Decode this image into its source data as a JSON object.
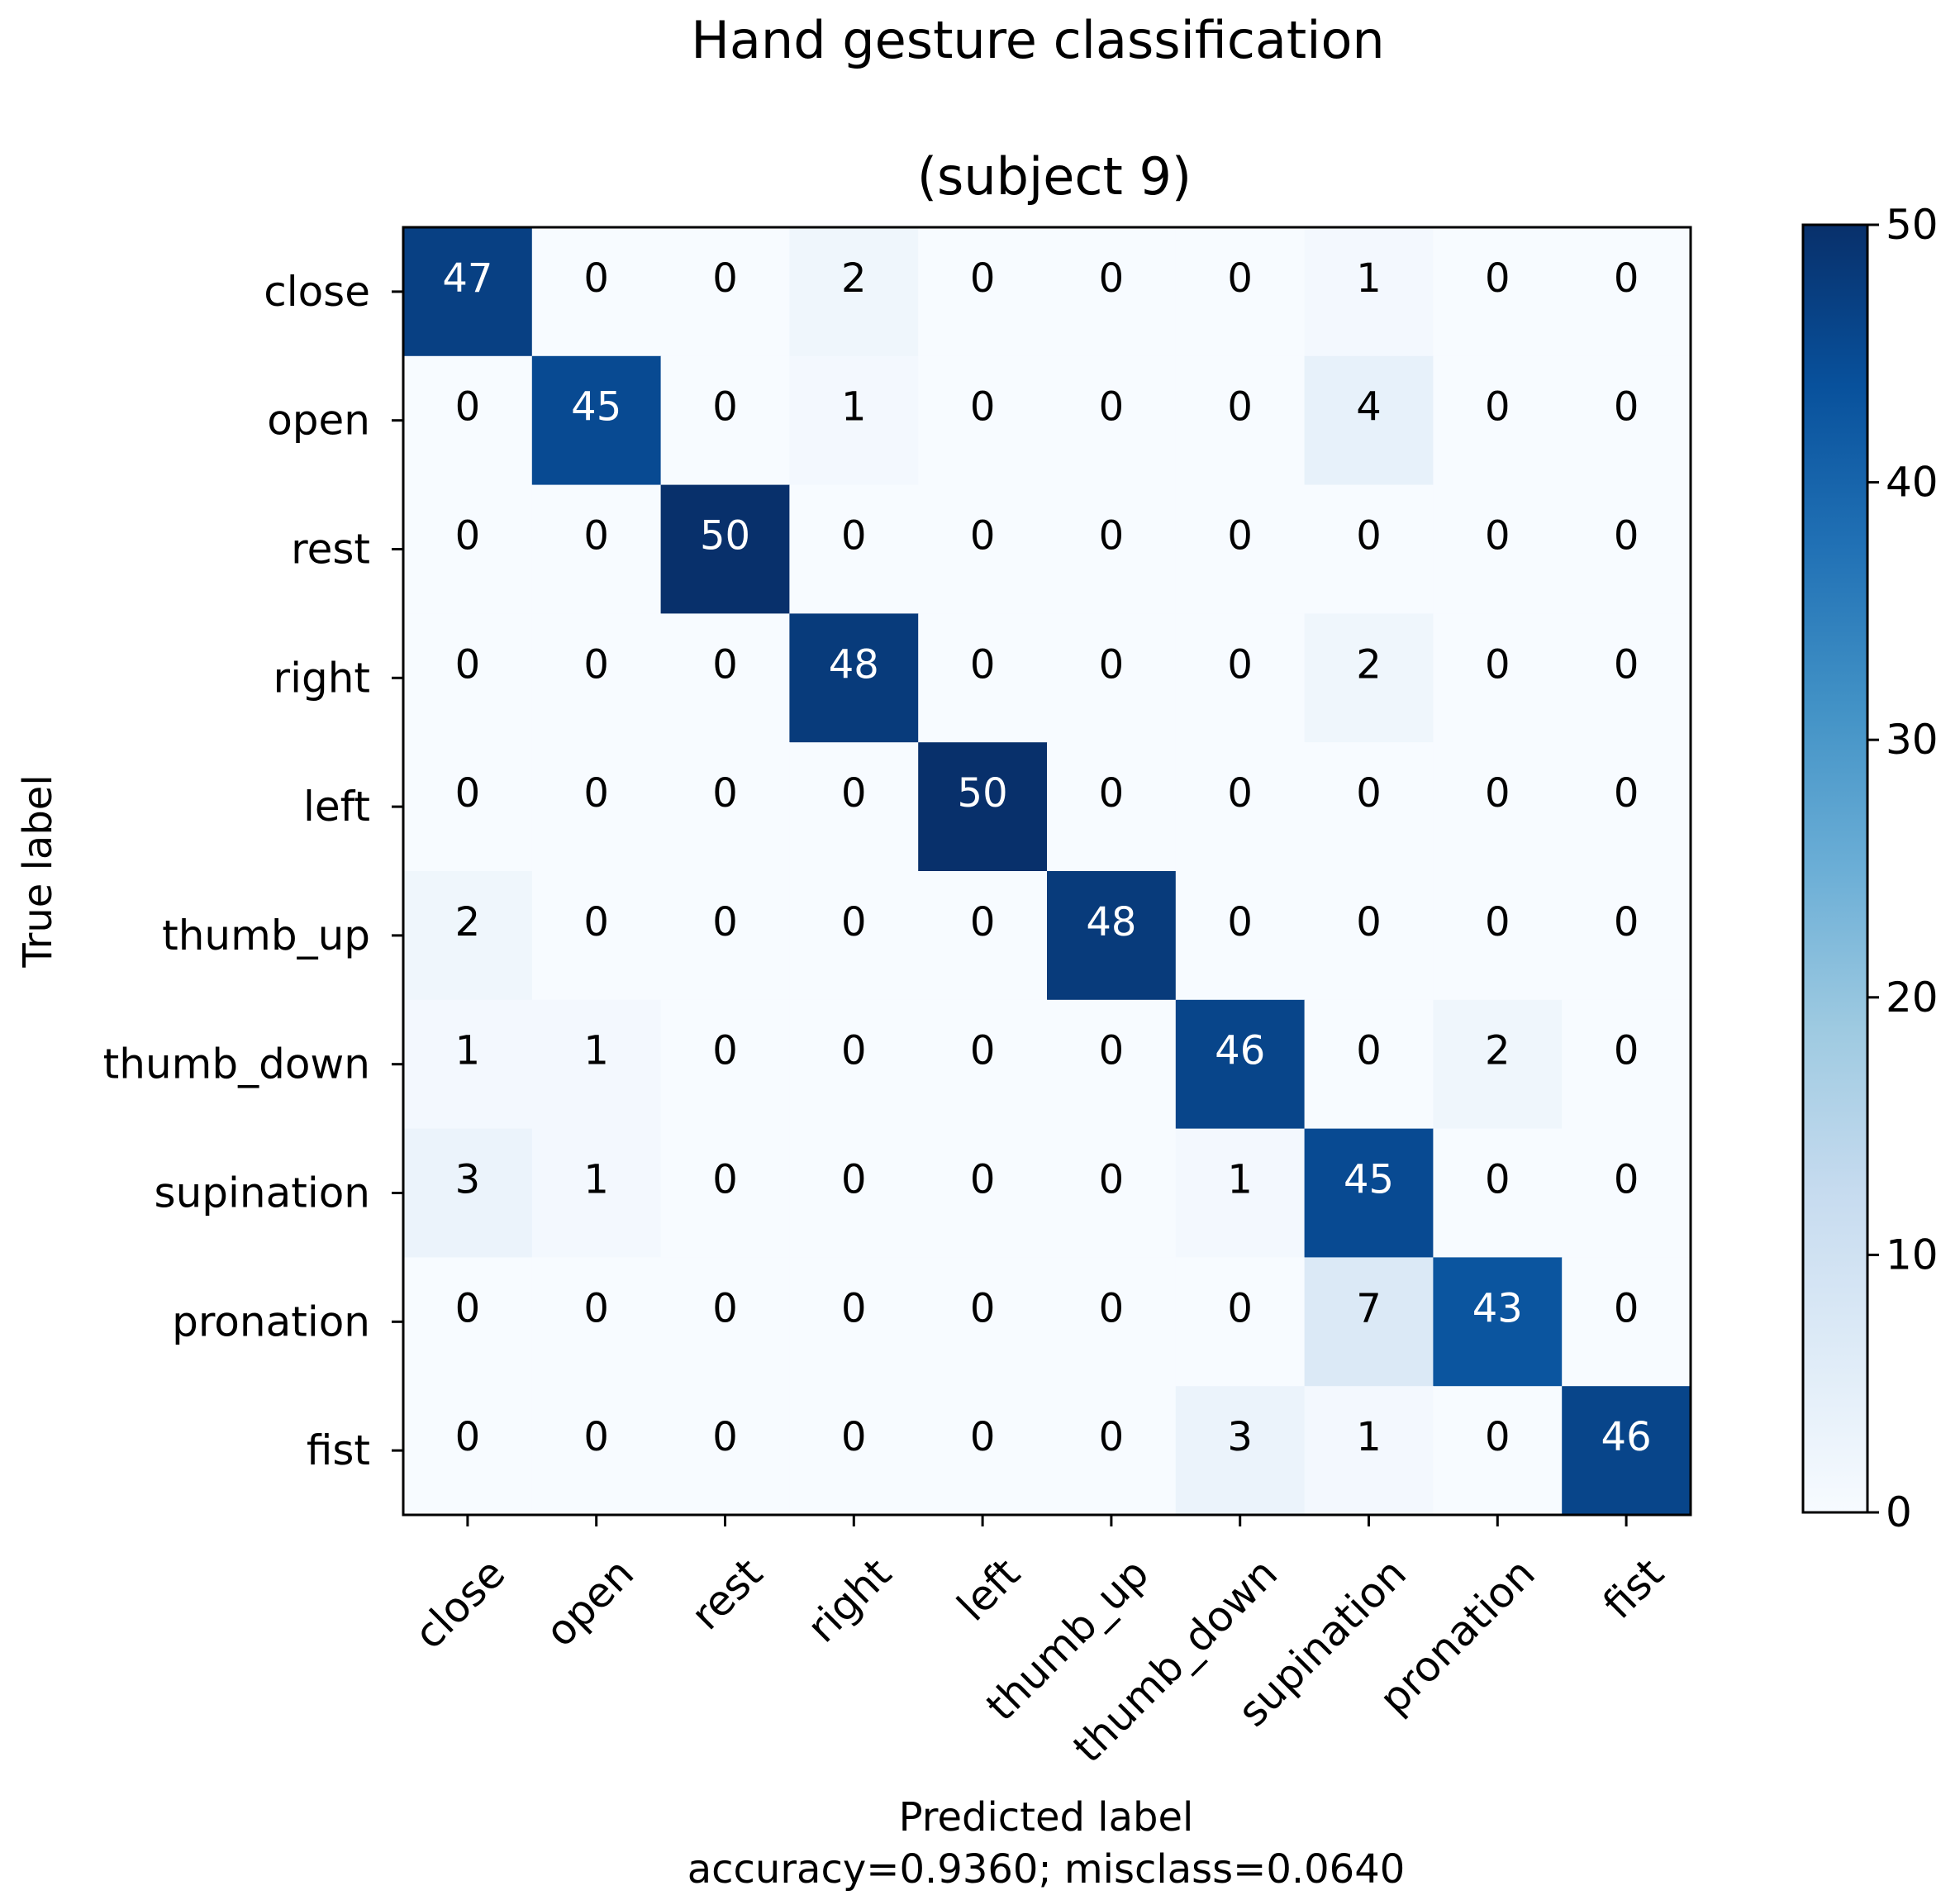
{
  "chart_data": {
    "type": "heatmap",
    "title": "Hand gesture classification",
    "subtitle": "(subject 9)",
    "xlabel": "Predicted label",
    "metrics_line": "accuracy=0.9360; misclass=0.0640",
    "ylabel": "True label",
    "row_labels": [
      "close",
      "open",
      "rest",
      "right",
      "left",
      "thumb_up",
      "thumb_down",
      "supination",
      "pronation",
      "fist"
    ],
    "col_labels": [
      "close",
      "open",
      "rest",
      "right",
      "left",
      "thumb_up",
      "thumb_down",
      "supination",
      "pronation",
      "fist"
    ],
    "matrix": [
      [
        47,
        0,
        0,
        2,
        0,
        0,
        0,
        1,
        0,
        0
      ],
      [
        0,
        45,
        0,
        1,
        0,
        0,
        0,
        4,
        0,
        0
      ],
      [
        0,
        0,
        50,
        0,
        0,
        0,
        0,
        0,
        0,
        0
      ],
      [
        0,
        0,
        0,
        48,
        0,
        0,
        0,
        2,
        0,
        0
      ],
      [
        0,
        0,
        0,
        0,
        50,
        0,
        0,
        0,
        0,
        0
      ],
      [
        2,
        0,
        0,
        0,
        0,
        48,
        0,
        0,
        0,
        0
      ],
      [
        1,
        1,
        0,
        0,
        0,
        0,
        46,
        0,
        2,
        0
      ],
      [
        3,
        1,
        0,
        0,
        0,
        0,
        1,
        45,
        0,
        0
      ],
      [
        0,
        0,
        0,
        0,
        0,
        0,
        0,
        7,
        43,
        0
      ],
      [
        0,
        0,
        0,
        0,
        0,
        0,
        3,
        1,
        0,
        46
      ]
    ],
    "colorbar": {
      "min": 0,
      "max": 50,
      "ticks": [
        0,
        10,
        20,
        30,
        40,
        50
      ],
      "tick_labels": [
        "0",
        "10",
        "20",
        "30",
        "40",
        "50"
      ]
    },
    "colormap": "Blues",
    "colors": {
      "low": "#f7fbff",
      "high": "#08306b",
      "text_dark": "#000000",
      "text_light": "#ffffff"
    }
  }
}
